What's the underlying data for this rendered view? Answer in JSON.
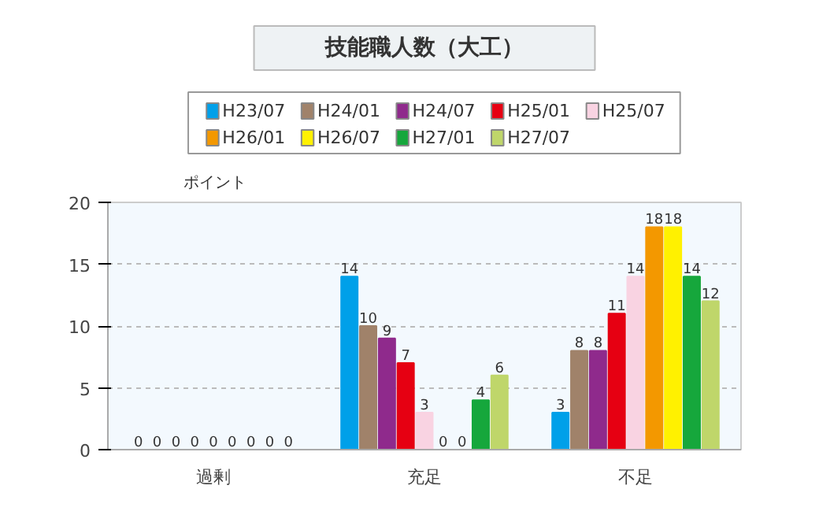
{
  "chart_data": {
    "type": "bar",
    "title": "技能職人数（大工）",
    "ylabel": "ポイント",
    "categories": [
      "過剰",
      "充足",
      "不足"
    ],
    "series": [
      {
        "name": "H23/07",
        "color": "#00a0e9",
        "values": [
          0,
          14,
          3
        ]
      },
      {
        "name": "H24/01",
        "color": "#a0826a",
        "values": [
          0,
          10,
          8
        ]
      },
      {
        "name": "H24/07",
        "color": "#8f2a8c",
        "values": [
          0,
          9,
          8
        ]
      },
      {
        "name": "H25/01",
        "color": "#e60012",
        "values": [
          0,
          7,
          11
        ]
      },
      {
        "name": "H25/07",
        "color": "#f9d3e2",
        "values": [
          0,
          3,
          14
        ]
      },
      {
        "name": "H26/01",
        "color": "#f39800",
        "values": [
          0,
          0,
          18
        ]
      },
      {
        "name": "H26/07",
        "color": "#fff100",
        "values": [
          0,
          0,
          18
        ]
      },
      {
        "name": "H27/01",
        "color": "#16a73c",
        "values": [
          0,
          4,
          14
        ]
      },
      {
        "name": "H27/07",
        "color": "#bfd66a",
        "values": [
          0,
          6,
          12
        ]
      }
    ],
    "ylim": [
      0,
      20
    ],
    "yticks": [
      0,
      5,
      10,
      15,
      20
    ],
    "grid": "y",
    "legend": "top",
    "data_labels": true
  }
}
